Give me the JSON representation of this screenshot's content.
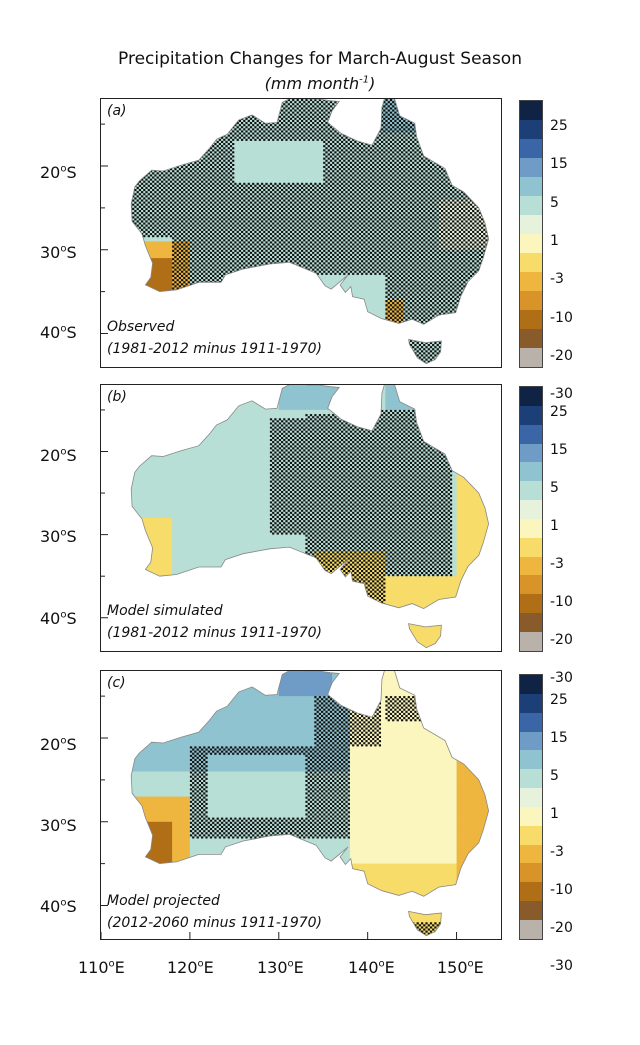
{
  "figure": {
    "title": "Precipitation Changes for March-August Season",
    "units_prefix": "(mm month",
    "units_exp": "-1",
    "units_suffix": ")"
  },
  "panels": [
    {
      "tag": "(a)",
      "caption_line1": "Observed",
      "caption_line2": "(1981-2012 minus 1911-1970)"
    },
    {
      "tag": "(b)",
      "caption_line1": "Model simulated",
      "caption_line2": "(1981-2012 minus 1911-1970)"
    },
    {
      "tag": "(c)",
      "caption_line1": "Model projected",
      "caption_line2": "(2012-2060 minus 1911-1970)"
    }
  ],
  "axes": {
    "lat_labels": [
      {
        "value": "20",
        "deg": "o",
        "hemi": "S"
      },
      {
        "value": "30",
        "deg": "o",
        "hemi": "S"
      },
      {
        "value": "40",
        "deg": "o",
        "hemi": "S"
      }
    ],
    "lon_labels": [
      {
        "value": "110",
        "deg": "o",
        "hemi": "E"
      },
      {
        "value": "120",
        "deg": "o",
        "hemi": "E"
      },
      {
        "value": "130",
        "deg": "o",
        "hemi": "E"
      },
      {
        "value": "140",
        "deg": "o",
        "hemi": "E"
      },
      {
        "value": "150",
        "deg": "o",
        "hemi": "E"
      }
    ]
  },
  "colorbar": {
    "colors": [
      "#0f2344",
      "#1d3f77",
      "#3a66a8",
      "#6f9bc7",
      "#8ec3cf",
      "#b7dfd6",
      "#e6f2dc",
      "#fbf6bd",
      "#f7dc6a",
      "#eeb63f",
      "#d99429",
      "#b06e16",
      "#8a5b2a",
      "#b9b2aa"
    ],
    "labels": [
      "25",
      "15",
      "5",
      "1",
      "-3",
      "-10",
      "-20",
      "-30"
    ]
  }
}
